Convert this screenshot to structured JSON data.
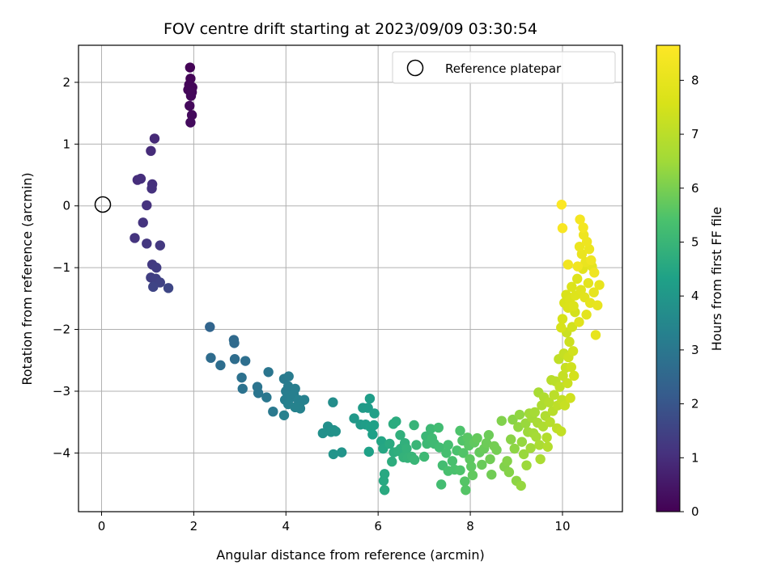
{
  "chart_data": {
    "type": "scatter",
    "title": "FOV centre drift starting at 2023/09/09 03:30:54",
    "xlabel": "Angular distance from reference (arcmin)",
    "ylabel": "Rotation from reference (arcmin)",
    "xlim": [
      -0.5,
      11.3
    ],
    "ylim": [
      -4.95,
      2.6
    ],
    "xticks": [
      0,
      2,
      4,
      6,
      8,
      10
    ],
    "yticks": [
      -4,
      -3,
      -2,
      -1,
      0,
      1,
      2
    ],
    "grid": true,
    "legend": {
      "location": "upper right",
      "entries": [
        "Reference platepar"
      ]
    },
    "reference_point": {
      "x": 0,
      "y": 0,
      "marker": "open-circle"
    },
    "colorbar": {
      "label": "Hours from first FF file",
      "colormap": "viridis",
      "range": [
        0,
        8.65
      ],
      "ticks": [
        0,
        1,
        2,
        3,
        4,
        5,
        6,
        7,
        8
      ]
    },
    "points": [
      {
        "x": 1.92,
        "y": 2.24,
        "c": 0.05
      },
      {
        "x": 1.93,
        "y": 2.06,
        "c": 0.08
      },
      {
        "x": 1.9,
        "y": 1.96,
        "c": 0.1
      },
      {
        "x": 1.97,
        "y": 1.92,
        "c": 0.12
      },
      {
        "x": 1.88,
        "y": 1.88,
        "c": 0.14
      },
      {
        "x": 1.94,
        "y": 1.78,
        "c": 0.16
      },
      {
        "x": 1.91,
        "y": 1.62,
        "c": 0.18
      },
      {
        "x": 1.96,
        "y": 1.47,
        "c": 0.2
      },
      {
        "x": 1.93,
        "y": 1.35,
        "c": 0.22
      },
      {
        "x": 1.96,
        "y": 1.84,
        "c": 0.15
      },
      {
        "x": 1.15,
        "y": 1.09,
        "c": 0.9
      },
      {
        "x": 1.07,
        "y": 0.89,
        "c": 0.95
      },
      {
        "x": 0.78,
        "y": 0.42,
        "c": 1.0
      },
      {
        "x": 0.85,
        "y": 0.44,
        "c": 1.02
      },
      {
        "x": 1.1,
        "y": 0.35,
        "c": 1.05
      },
      {
        "x": 1.09,
        "y": 0.28,
        "c": 1.08
      },
      {
        "x": 0.98,
        "y": 0.01,
        "c": 1.1
      },
      {
        "x": 0.9,
        "y": -0.27,
        "c": 1.12
      },
      {
        "x": 0.72,
        "y": -0.52,
        "c": 1.15
      },
      {
        "x": 0.98,
        "y": -0.61,
        "c": 1.2
      },
      {
        "x": 1.27,
        "y": -0.64,
        "c": 1.25
      },
      {
        "x": 1.1,
        "y": -0.95,
        "c": 1.3
      },
      {
        "x": 1.19,
        "y": -1.0,
        "c": 1.35
      },
      {
        "x": 1.07,
        "y": -1.16,
        "c": 1.4
      },
      {
        "x": 1.18,
        "y": -1.18,
        "c": 1.45
      },
      {
        "x": 1.27,
        "y": -1.24,
        "c": 1.5
      },
      {
        "x": 1.12,
        "y": -1.31,
        "c": 1.55
      },
      {
        "x": 1.45,
        "y": -1.33,
        "c": 1.6
      },
      {
        "x": 2.35,
        "y": -1.96,
        "c": 2.45
      },
      {
        "x": 2.87,
        "y": -2.17,
        "c": 2.6
      },
      {
        "x": 2.88,
        "y": -2.22,
        "c": 2.62
      },
      {
        "x": 2.37,
        "y": -2.46,
        "c": 2.65
      },
      {
        "x": 2.89,
        "y": -2.48,
        "c": 2.7
      },
      {
        "x": 3.12,
        "y": -2.51,
        "c": 2.75
      },
      {
        "x": 2.58,
        "y": -2.58,
        "c": 2.72
      },
      {
        "x": 3.04,
        "y": -2.78,
        "c": 2.8
      },
      {
        "x": 3.06,
        "y": -2.96,
        "c": 2.85
      },
      {
        "x": 3.38,
        "y": -2.93,
        "c": 2.9
      },
      {
        "x": 3.62,
        "y": -2.69,
        "c": 2.95
      },
      {
        "x": 3.4,
        "y": -3.03,
        "c": 2.95
      },
      {
        "x": 3.58,
        "y": -3.1,
        "c": 3.0
      },
      {
        "x": 3.72,
        "y": -3.33,
        "c": 3.05
      },
      {
        "x": 3.96,
        "y": -2.8,
        "c": 3.1
      },
      {
        "x": 4.06,
        "y": -2.76,
        "c": 3.12
      },
      {
        "x": 4.05,
        "y": -2.92,
        "c": 3.15
      },
      {
        "x": 4.0,
        "y": -3.0,
        "c": 3.15
      },
      {
        "x": 4.2,
        "y": -2.96,
        "c": 3.2
      },
      {
        "x": 4.04,
        "y": -3.06,
        "c": 3.2
      },
      {
        "x": 3.98,
        "y": -3.14,
        "c": 3.22
      },
      {
        "x": 4.12,
        "y": -3.1,
        "c": 3.25
      },
      {
        "x": 4.17,
        "y": -3.05,
        "c": 3.25
      },
      {
        "x": 4.27,
        "y": -3.14,
        "c": 3.3
      },
      {
        "x": 4.4,
        "y": -3.14,
        "c": 3.3
      },
      {
        "x": 4.05,
        "y": -3.21,
        "c": 3.3
      },
      {
        "x": 4.3,
        "y": -3.2,
        "c": 3.32
      },
      {
        "x": 4.31,
        "y": -3.28,
        "c": 3.35
      },
      {
        "x": 4.2,
        "y": -3.26,
        "c": 3.35
      },
      {
        "x": 3.96,
        "y": -3.39,
        "c": 3.3
      },
      {
        "x": 5.02,
        "y": -3.18,
        "c": 3.7
      },
      {
        "x": 4.91,
        "y": -3.57,
        "c": 3.75
      },
      {
        "x": 5.04,
        "y": -3.63,
        "c": 3.8
      },
      {
        "x": 4.8,
        "y": -3.68,
        "c": 3.78
      },
      {
        "x": 4.98,
        "y": -3.66,
        "c": 3.82
      },
      {
        "x": 5.08,
        "y": -3.65,
        "c": 3.85
      },
      {
        "x": 5.21,
        "y": -3.99,
        "c": 3.9
      },
      {
        "x": 5.03,
        "y": -4.02,
        "c": 3.9
      },
      {
        "x": 5.48,
        "y": -3.44,
        "c": 4.05
      },
      {
        "x": 5.62,
        "y": -3.54,
        "c": 4.1
      },
      {
        "x": 5.67,
        "y": -3.27,
        "c": 4.1
      },
      {
        "x": 5.78,
        "y": -3.27,
        "c": 4.15
      },
      {
        "x": 5.82,
        "y": -3.12,
        "c": 4.2
      },
      {
        "x": 5.73,
        "y": -3.54,
        "c": 4.2
      },
      {
        "x": 5.83,
        "y": -3.58,
        "c": 4.25
      },
      {
        "x": 5.92,
        "y": -3.36,
        "c": 4.25
      },
      {
        "x": 5.91,
        "y": -3.55,
        "c": 4.28
      },
      {
        "x": 5.88,
        "y": -3.7,
        "c": 4.3
      },
      {
        "x": 5.8,
        "y": -3.98,
        "c": 4.32
      },
      {
        "x": 6.07,
        "y": -3.81,
        "c": 4.45
      },
      {
        "x": 6.11,
        "y": -3.93,
        "c": 4.5
      },
      {
        "x": 6.14,
        "y": -4.34,
        "c": 4.55
      },
      {
        "x": 6.12,
        "y": -4.45,
        "c": 4.55
      },
      {
        "x": 6.14,
        "y": -4.6,
        "c": 4.6
      },
      {
        "x": 6.25,
        "y": -3.85,
        "c": 4.6
      },
      {
        "x": 6.33,
        "y": -3.53,
        "c": 4.65
      },
      {
        "x": 6.39,
        "y": -3.49,
        "c": 4.65
      },
      {
        "x": 6.34,
        "y": -3.99,
        "c": 4.7
      },
      {
        "x": 6.3,
        "y": -4.14,
        "c": 4.7
      },
      {
        "x": 6.49,
        "y": -3.93,
        "c": 4.75
      },
      {
        "x": 6.44,
        "y": -3.97,
        "c": 4.75
      },
      {
        "x": 6.58,
        "y": -3.84,
        "c": 4.8
      },
      {
        "x": 6.62,
        "y": -3.93,
        "c": 4.85
      },
      {
        "x": 6.55,
        "y": -4.07,
        "c": 4.85
      },
      {
        "x": 6.48,
        "y": -3.71,
        "c": 4.8
      },
      {
        "x": 6.64,
        "y": -4.08,
        "c": 4.9
      },
      {
        "x": 6.78,
        "y": -3.55,
        "c": 4.95
      },
      {
        "x": 6.73,
        "y": -4.06,
        "c": 4.95
      },
      {
        "x": 6.79,
        "y": -4.11,
        "c": 5.0
      },
      {
        "x": 6.83,
        "y": -3.87,
        "c": 5.0
      },
      {
        "x": 7.04,
        "y": -3.73,
        "c": 5.05
      },
      {
        "x": 7.06,
        "y": -3.85,
        "c": 5.1
      },
      {
        "x": 7.14,
        "y": -3.61,
        "c": 5.1
      },
      {
        "x": 7.0,
        "y": -4.06,
        "c": 5.1
      },
      {
        "x": 7.17,
        "y": -3.76,
        "c": 5.15
      },
      {
        "x": 7.22,
        "y": -3.85,
        "c": 5.15
      },
      {
        "x": 7.31,
        "y": -3.59,
        "c": 5.2
      },
      {
        "x": 7.33,
        "y": -3.91,
        "c": 5.2
      },
      {
        "x": 7.37,
        "y": -4.51,
        "c": 5.25
      },
      {
        "x": 7.4,
        "y": -4.2,
        "c": 5.25
      },
      {
        "x": 7.48,
        "y": -4.0,
        "c": 5.3
      },
      {
        "x": 7.52,
        "y": -3.87,
        "c": 5.3
      },
      {
        "x": 7.52,
        "y": -4.29,
        "c": 5.35
      },
      {
        "x": 7.61,
        "y": -4.13,
        "c": 5.35
      },
      {
        "x": 7.66,
        "y": -4.27,
        "c": 5.4
      },
      {
        "x": 7.71,
        "y": -3.96,
        "c": 5.4
      },
      {
        "x": 7.78,
        "y": -3.64,
        "c": 5.45
      },
      {
        "x": 7.78,
        "y": -4.28,
        "c": 5.45
      },
      {
        "x": 7.83,
        "y": -3.8,
        "c": 5.5
      },
      {
        "x": 7.85,
        "y": -4.0,
        "c": 5.5
      },
      {
        "x": 7.88,
        "y": -4.46,
        "c": 5.55
      },
      {
        "x": 7.9,
        "y": -4.6,
        "c": 5.55
      },
      {
        "x": 7.94,
        "y": -3.75,
        "c": 5.6
      },
      {
        "x": 7.97,
        "y": -3.88,
        "c": 5.6
      },
      {
        "x": 7.99,
        "y": -4.1,
        "c": 5.65
      },
      {
        "x": 8.02,
        "y": -4.22,
        "c": 5.65
      },
      {
        "x": 8.05,
        "y": -4.36,
        "c": 5.7
      },
      {
        "x": 8.09,
        "y": -3.83,
        "c": 5.7
      },
      {
        "x": 8.15,
        "y": -3.76,
        "c": 5.75
      },
      {
        "x": 8.2,
        "y": -3.99,
        "c": 5.75
      },
      {
        "x": 8.25,
        "y": -4.19,
        "c": 5.8
      },
      {
        "x": 8.3,
        "y": -3.93,
        "c": 5.8
      },
      {
        "x": 8.35,
        "y": -3.84,
        "c": 5.85
      },
      {
        "x": 8.4,
        "y": -3.71,
        "c": 5.85
      },
      {
        "x": 8.43,
        "y": -4.1,
        "c": 5.9
      },
      {
        "x": 8.46,
        "y": -4.35,
        "c": 5.9
      },
      {
        "x": 8.52,
        "y": -3.89,
        "c": 5.95
      },
      {
        "x": 8.57,
        "y": -3.95,
        "c": 5.95
      },
      {
        "x": 8.68,
        "y": -3.48,
        "c": 6.1
      },
      {
        "x": 8.74,
        "y": -4.22,
        "c": 6.1
      },
      {
        "x": 8.8,
        "y": -4.13,
        "c": 6.15
      },
      {
        "x": 8.84,
        "y": -4.31,
        "c": 6.15
      },
      {
        "x": 8.88,
        "y": -3.78,
        "c": 6.2
      },
      {
        "x": 8.92,
        "y": -3.46,
        "c": 6.2
      },
      {
        "x": 8.96,
        "y": -3.93,
        "c": 6.25
      },
      {
        "x": 9.0,
        "y": -4.45,
        "c": 6.25
      },
      {
        "x": 9.04,
        "y": -3.58,
        "c": 6.3
      },
      {
        "x": 9.07,
        "y": -3.38,
        "c": 6.3
      },
      {
        "x": 9.1,
        "y": -4.53,
        "c": 6.35
      },
      {
        "x": 9.12,
        "y": -3.82,
        "c": 6.35
      },
      {
        "x": 9.16,
        "y": -4.02,
        "c": 6.4
      },
      {
        "x": 9.2,
        "y": -3.52,
        "c": 6.4
      },
      {
        "x": 9.22,
        "y": -4.2,
        "c": 6.45
      },
      {
        "x": 9.25,
        "y": -3.66,
        "c": 6.45
      },
      {
        "x": 9.28,
        "y": -3.36,
        "c": 6.5
      },
      {
        "x": 9.31,
        "y": -3.92,
        "c": 6.5
      },
      {
        "x": 9.34,
        "y": -3.43,
        "c": 6.55
      },
      {
        "x": 9.37,
        "y": -3.68,
        "c": 6.55
      },
      {
        "x": 9.4,
        "y": -3.34,
        "c": 6.6
      },
      {
        "x": 9.43,
        "y": -3.74,
        "c": 6.6
      },
      {
        "x": 9.46,
        "y": -3.51,
        "c": 6.65
      },
      {
        "x": 9.48,
        "y": -3.02,
        "c": 6.65
      },
      {
        "x": 9.5,
        "y": -3.87,
        "c": 6.7
      },
      {
        "x": 9.52,
        "y": -4.1,
        "c": 6.7
      },
      {
        "x": 9.55,
        "y": -3.23,
        "c": 6.75
      },
      {
        "x": 9.58,
        "y": -3.57,
        "c": 6.75
      },
      {
        "x": 9.6,
        "y": -3.1,
        "c": 6.8
      },
      {
        "x": 9.63,
        "y": -3.4,
        "c": 6.8
      },
      {
        "x": 9.66,
        "y": -3.75,
        "c": 6.85
      },
      {
        "x": 9.68,
        "y": -3.9,
        "c": 6.85
      },
      {
        "x": 9.71,
        "y": -3.18,
        "c": 6.9
      },
      {
        "x": 9.73,
        "y": -3.5,
        "c": 6.9
      },
      {
        "x": 9.76,
        "y": -2.82,
        "c": 6.95
      },
      {
        "x": 9.79,
        "y": -3.32,
        "c": 6.95
      },
      {
        "x": 9.82,
        "y": -3.06,
        "c": 7.0
      },
      {
        "x": 9.85,
        "y": -2.84,
        "c": 7.0
      },
      {
        "x": 9.88,
        "y": -3.6,
        "c": 7.05
      },
      {
        "x": 9.9,
        "y": -3.23,
        "c": 7.05
      },
      {
        "x": 9.92,
        "y": -2.48,
        "c": 7.1
      },
      {
        "x": 9.94,
        "y": -2.93,
        "c": 7.1
      },
      {
        "x": 9.97,
        "y": -3.65,
        "c": 7.15
      },
      {
        "x": 9.99,
        "y": -3.14,
        "c": 7.15
      },
      {
        "x": 10.01,
        "y": -2.75,
        "c": 7.2
      },
      {
        "x": 10.03,
        "y": -2.39,
        "c": 7.2
      },
      {
        "x": 10.05,
        "y": -3.23,
        "c": 7.25
      },
      {
        "x": 10.07,
        "y": -2.62,
        "c": 7.25
      },
      {
        "x": 10.09,
        "y": -2.05,
        "c": 7.3
      },
      {
        "x": 10.11,
        "y": -2.87,
        "c": 7.3
      },
      {
        "x": 10.13,
        "y": -2.45,
        "c": 7.35
      },
      {
        "x": 10.15,
        "y": -2.2,
        "c": 7.35
      },
      {
        "x": 10.17,
        "y": -3.11,
        "c": 7.4
      },
      {
        "x": 10.19,
        "y": -2.61,
        "c": 7.4
      },
      {
        "x": 10.21,
        "y": -1.96,
        "c": 7.45
      },
      {
        "x": 10.23,
        "y": -2.35,
        "c": 7.45
      },
      {
        "x": 10.25,
        "y": -2.75,
        "c": 7.5
      },
      {
        "x": 10.27,
        "y": -1.72,
        "c": 7.5
      },
      {
        "x": 9.97,
        "y": -1.97,
        "c": 7.55
      },
      {
        "x": 10.0,
        "y": -1.83,
        "c": 7.55
      },
      {
        "x": 10.04,
        "y": -1.57,
        "c": 7.6
      },
      {
        "x": 10.08,
        "y": -1.44,
        "c": 7.6
      },
      {
        "x": 10.12,
        "y": -1.65,
        "c": 7.65
      },
      {
        "x": 10.16,
        "y": -1.52,
        "c": 7.65
      },
      {
        "x": 10.2,
        "y": -1.31,
        "c": 7.7
      },
      {
        "x": 10.24,
        "y": -1.62,
        "c": 7.7
      },
      {
        "x": 10.28,
        "y": -1.45,
        "c": 7.75
      },
      {
        "x": 10.32,
        "y": -1.18,
        "c": 7.75
      },
      {
        "x": 10.36,
        "y": -1.88,
        "c": 7.8
      },
      {
        "x": 10.4,
        "y": -1.36,
        "c": 7.8
      },
      {
        "x": 10.44,
        "y": -1.02,
        "c": 7.85
      },
      {
        "x": 10.48,
        "y": -1.48,
        "c": 7.85
      },
      {
        "x": 10.52,
        "y": -1.76,
        "c": 7.9
      },
      {
        "x": 10.56,
        "y": -1.25,
        "c": 7.9
      },
      {
        "x": 10.6,
        "y": -1.57,
        "c": 7.95
      },
      {
        "x": 10.64,
        "y": -0.98,
        "c": 7.95
      },
      {
        "x": 10.68,
        "y": -1.4,
        "c": 8.0
      },
      {
        "x": 10.72,
        "y": -2.09,
        "c": 8.0
      },
      {
        "x": 10.76,
        "y": -1.61,
        "c": 8.05
      },
      {
        "x": 10.8,
        "y": -1.28,
        "c": 8.05
      },
      {
        "x": 10.5,
        "y": -0.91,
        "c": 8.1
      },
      {
        "x": 10.42,
        "y": -0.78,
        "c": 8.1
      },
      {
        "x": 10.58,
        "y": -0.7,
        "c": 8.15
      },
      {
        "x": 10.37,
        "y": -0.66,
        "c": 8.15
      },
      {
        "x": 10.53,
        "y": -0.58,
        "c": 8.2
      },
      {
        "x": 10.46,
        "y": -0.47,
        "c": 8.2
      },
      {
        "x": 10.62,
        "y": -0.88,
        "c": 8.25
      },
      {
        "x": 10.69,
        "y": -1.08,
        "c": 8.25
      },
      {
        "x": 10.33,
        "y": -0.98,
        "c": 8.3
      },
      {
        "x": 10.12,
        "y": -0.95,
        "c": 8.3
      },
      {
        "x": 10.45,
        "y": -0.35,
        "c": 8.35
      },
      {
        "x": 10.38,
        "y": -0.22,
        "c": 8.4
      },
      {
        "x": 10.0,
        "y": -0.36,
        "c": 8.5
      },
      {
        "x": 9.98,
        "y": 0.02,
        "c": 8.6
      }
    ]
  }
}
